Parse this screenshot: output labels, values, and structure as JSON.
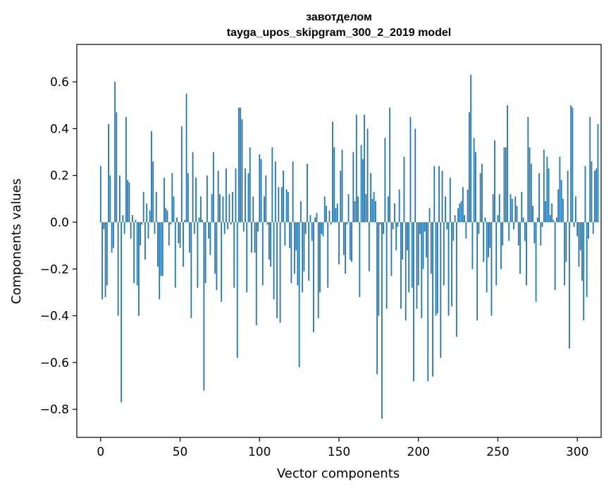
{
  "chart_data": {
    "type": "bar",
    "title_line1": "завотделом",
    "title_line2": "tayga_upos_skipgram_300_2_2019 model",
    "xlabel": "Vector components",
    "ylabel": "Components values",
    "xlim": [
      -15,
      315
    ],
    "ylim": [
      -0.92,
      0.76
    ],
    "xticks": [
      0,
      50,
      100,
      150,
      200,
      250,
      300
    ],
    "xtick_labels": [
      "0",
      "50",
      "100",
      "150",
      "200",
      "250",
      "300"
    ],
    "yticks": [
      -0.8,
      -0.6,
      -0.4,
      -0.2,
      0.0,
      0.2,
      0.4,
      0.6
    ],
    "ytick_labels": [
      "−0.8",
      "−0.6",
      "−0.4",
      "−0.2",
      "0.0",
      "0.2",
      "0.4",
      "0.6"
    ],
    "bar_color": "#1f77b4",
    "grid": false,
    "values": [
      0.24,
      -0.33,
      -0.03,
      -0.32,
      -0.27,
      0.42,
      0.2,
      -0.13,
      -0.11,
      0.6,
      0.47,
      -0.4,
      0.2,
      -0.77,
      0.03,
      -0.05,
      0.45,
      0.18,
      0.17,
      -0.07,
      0.03,
      -0.26,
      0.01,
      -0.27,
      -0.4,
      -0.1,
      -0.01,
      0.13,
      -0.16,
      0.08,
      -0.07,
      0.05,
      0.39,
      0.26,
      -0.05,
      0.13,
      -0.19,
      -0.33,
      -0.23,
      -0.23,
      0.19,
      0.06,
      0.05,
      -0.1,
      -0.01,
      0.21,
      0.11,
      -0.28,
      0.02,
      -0.09,
      -0.11,
      0.41,
      -0.19,
      0.01,
      0.55,
      0.21,
      -0.13,
      -0.41,
      0.3,
      -0.05,
      0.19,
      -0.28,
      0.02,
      0.11,
      0.01,
      -0.72,
      -0.26,
      0.2,
      -0.07,
      -0.14,
      0.12,
      0.3,
      -0.22,
      -0.29,
      0.22,
      0.12,
      -0.34,
      0.11,
      -0.05,
      0.23,
      -0.03,
      0.12,
      -0.01,
      0.13,
      -0.28,
      0.23,
      -0.58,
      0.49,
      0.49,
      0.44,
      -0.04,
      0.23,
      -0.3,
      0.21,
      0.32,
      -0.13,
      0.11,
      -0.13,
      -0.44,
      -0.04,
      0.29,
      0.27,
      -0.27,
      0.11,
      0.2,
      -0.01,
      -0.16,
      -0.19,
      0.32,
      -0.33,
      0.26,
      -0.41,
      0.15,
      -0.43,
      0.15,
      0.22,
      -0.1,
      0.14,
      0.13,
      -0.11,
      -0.26,
      0.26,
      -0.22,
      -0.12,
      -0.27,
      -0.62,
      0.09,
      -0.3,
      -0.21,
      -0.05,
      0.25,
      -0.25,
      0.03,
      -0.08,
      -0.47,
      0.02,
      0.04,
      -0.41,
      -0.3,
      -0.05,
      -0.06,
      0.11,
      0.07,
      -0.28,
      0.05,
      -0.01,
      0.43,
      0.32,
      0.06,
      0.08,
      -0.18,
      0.22,
      0.31,
      -0.14,
      -0.22,
      -0.01,
      0.12,
      -0.16,
      -0.17,
      0.3,
      0.09,
      0.46,
      0.11,
      -0.32,
      0.33,
      0.27,
      0.46,
      0.12,
      0.4,
      -0.21,
      0.21,
      0.1,
      0.13,
      0.09,
      -0.65,
      -0.4,
      -0.01,
      -0.84,
      -0.05,
      0.36,
      -0.37,
      0.11,
      0.49,
      -0.23,
      -0.03,
      0.08,
      -0.12,
      -0.02,
      0.14,
      -0.37,
      -0.16,
      0.28,
      -0.42,
      -0.12,
      -0.3,
      0.45,
      -0.28,
      -0.68,
      0.4,
      -0.37,
      -0.27,
      -0.05,
      -0.41,
      -0.2,
      -0.04,
      -0.15,
      -0.68,
      0.06,
      -0.22,
      -0.66,
      0.24,
      -0.4,
      -0.39,
      0.24,
      -0.58,
      0.22,
      -0.27,
      0.11,
      -0.03,
      -0.4,
      0.19,
      -0.36,
      -0.08,
      0.03,
      -0.49,
      0.06,
      0.08,
      0.09,
      0.15,
      0.03,
      -0.07,
      0.14,
      0.47,
      0.63,
      -0.2,
      0.36,
      0.3,
      -0.42,
      -0.05,
      0.21,
      0.25,
      -0.17,
      0.02,
      -0.3,
      -0.15,
      -0.11,
      -0.4,
      0.12,
      0.35,
      -0.27,
      0.03,
      0.12,
      -0.2,
      -0.1,
      0.32,
      0.32,
      0.5,
      -0.08,
      0.12,
      0.1,
      -0.03,
      0.11,
      0.07,
      -0.1,
      -0.22,
      0.13,
      0.02,
      -0.08,
      -0.27,
      0.45,
      0.32,
      0.25,
      0.07,
      -0.09,
      -0.34,
      0.02,
      0.21,
      -0.1,
      -0.02,
      0.31,
      0.09,
      0.28,
      0.23,
      0.03,
      0.08,
      0.01,
      -0.29,
      0.02,
      0.14,
      0.28,
      0.18,
      0.1,
      -0.27,
      -0.17,
      0.22,
      -0.54,
      0.5,
      0.49,
      -0.02,
      0.11,
      -0.06,
      -0.19,
      -0.12,
      -0.25,
      -0.42,
      0.24,
      -0.32,
      -0.07,
      0.45,
      0.26,
      -0.05,
      0.22,
      0.23,
      0.42
    ]
  }
}
